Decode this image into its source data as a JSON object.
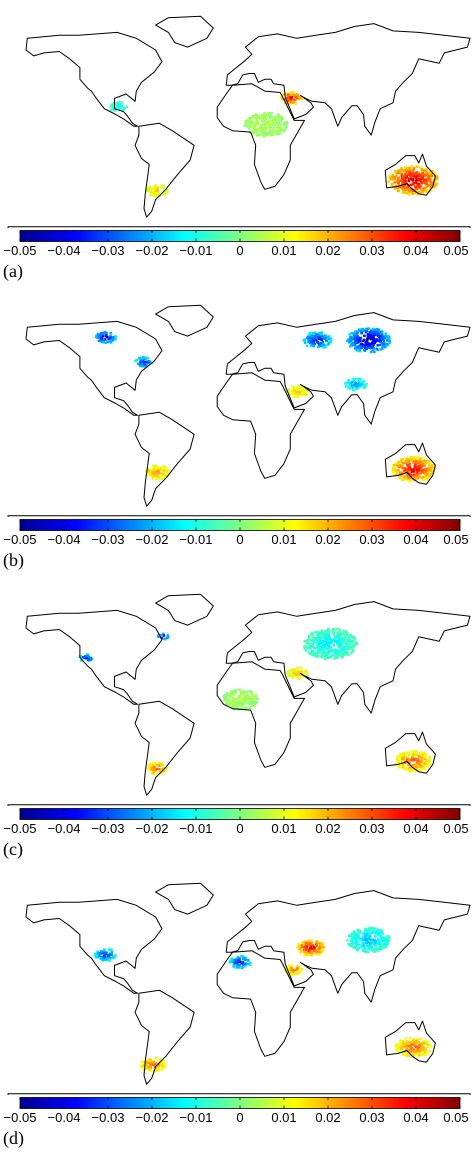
{
  "figure": {
    "colorbar": {
      "ticks": [
        "-0.05",
        "-0.04",
        "-0.03",
        "-0.02",
        "-0.01",
        "0",
        "0.01",
        "0.02",
        "0.03",
        "0.04",
        "0.05"
      ],
      "range": [
        -0.05,
        0.05
      ],
      "colormap": "jet",
      "colors": [
        "#00008f",
        "#0000ff",
        "#0080ff",
        "#00ffff",
        "#80ff80",
        "#ffff00",
        "#ff8000",
        "#ff0000",
        "#800000"
      ]
    },
    "panels": [
      {
        "label": "(a)",
        "hotspots": [
          {
            "lon": 135,
            "lat": -28,
            "value": 0.045,
            "spread": 14
          },
          {
            "lon": 40,
            "lat": 28,
            "value": 0.04,
            "spread": 6
          },
          {
            "lon": -65,
            "lat": -35,
            "value": 0.02,
            "spread": 6
          },
          {
            "lon": 20,
            "lat": 10,
            "value": 0.005,
            "spread": 12
          },
          {
            "lon": -95,
            "lat": 22,
            "value": -0.015,
            "spread": 5
          }
        ]
      },
      {
        "label": "(b)",
        "hotspots": [
          {
            "lon": 100,
            "lat": 60,
            "value": -0.05,
            "spread": 12
          },
          {
            "lon": 60,
            "lat": 60,
            "value": -0.04,
            "spread": 8
          },
          {
            "lon": -105,
            "lat": 62,
            "value": -0.045,
            "spread": 6
          },
          {
            "lon": -75,
            "lat": 45,
            "value": -0.04,
            "spread": 5
          },
          {
            "lon": 135,
            "lat": -28,
            "value": 0.04,
            "spread": 12
          },
          {
            "lon": -65,
            "lat": -30,
            "value": 0.025,
            "spread": 7
          },
          {
            "lon": 45,
            "lat": 25,
            "value": 0.02,
            "spread": 6
          },
          {
            "lon": 90,
            "lat": 30,
            "value": -0.025,
            "spread": 6
          }
        ]
      },
      {
        "label": "(c)",
        "hotspots": [
          {
            "lon": -60,
            "lat": 55,
            "value": -0.05,
            "spread": 3
          },
          {
            "lon": -120,
            "lat": 40,
            "value": -0.04,
            "spread": 4
          },
          {
            "lon": 70,
            "lat": 50,
            "value": -0.015,
            "spread": 15
          },
          {
            "lon": 135,
            "lat": -30,
            "value": 0.03,
            "spread": 10
          },
          {
            "lon": -65,
            "lat": -35,
            "value": 0.03,
            "spread": 6
          },
          {
            "lon": 45,
            "lat": 30,
            "value": 0.02,
            "spread": 6
          },
          {
            "lon": 0,
            "lat": 12,
            "value": 0.005,
            "spread": 10
          }
        ]
      },
      {
        "label": "(d)",
        "hotspots": [
          {
            "lon": -105,
            "lat": 35,
            "value": -0.035,
            "spread": 6
          },
          {
            "lon": 0,
            "lat": 30,
            "value": -0.04,
            "spread": 6
          },
          {
            "lon": 55,
            "lat": 40,
            "value": 0.04,
            "spread": 8
          },
          {
            "lon": 42,
            "lat": 25,
            "value": 0.03,
            "spread": 5
          },
          {
            "lon": 135,
            "lat": -28,
            "value": 0.03,
            "spread": 10
          },
          {
            "lon": -68,
            "lat": -40,
            "value": 0.03,
            "spread": 7
          },
          {
            "lon": 100,
            "lat": 45,
            "value": -0.02,
            "spread": 12
          }
        ]
      }
    ]
  }
}
